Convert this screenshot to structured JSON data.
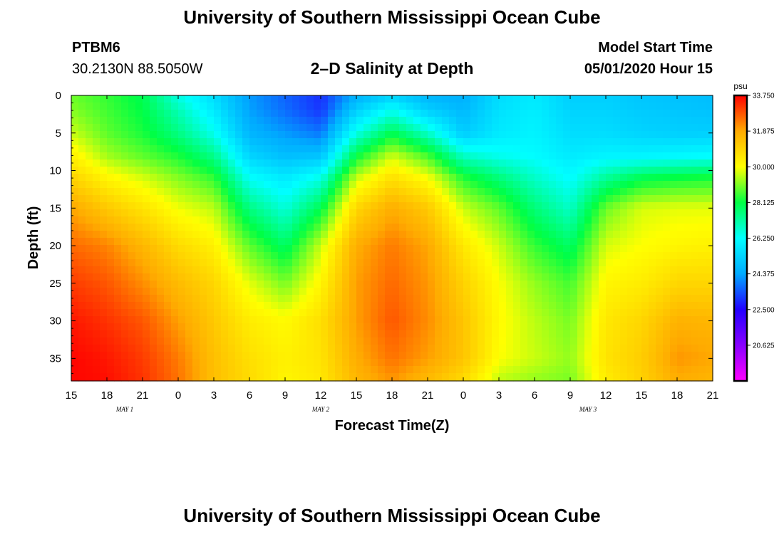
{
  "header": {
    "title": "University of Southern Mississippi Ocean Cube",
    "station": "PTBM6",
    "coords": "30.2130N 88.5050W",
    "subtitle": "2–D Salinity at Depth",
    "model_start_label": "Model Start Time",
    "model_start_value": "05/01/2020 Hour 15"
  },
  "footer": {
    "title": "University of Southern Mississippi Ocean Cube"
  },
  "chart_data": {
    "type": "heatmap",
    "xlabel": "Forecast Time(Z)",
    "ylabel": "Depth (ft)",
    "x_tick_labels": [
      "15",
      "18",
      "21",
      "0",
      "3",
      "6",
      "9",
      "12",
      "15",
      "18",
      "21",
      "0",
      "3",
      "6",
      "9",
      "12",
      "15",
      "18",
      "21"
    ],
    "date_labels": [
      {
        "label": "MAY 1",
        "at_tick": 1.5
      },
      {
        "label": "MAY 2",
        "at_tick": 7
      },
      {
        "label": "MAY 3",
        "at_tick": 14.5
      }
    ],
    "y_ticks": [
      0,
      5,
      10,
      15,
      20,
      25,
      30,
      35
    ],
    "ylim": [
      0,
      38
    ],
    "colorbar": {
      "unit": "psu",
      "min": 18.75,
      "max": 33.75,
      "tick_labels": [
        "33.750",
        "31.875",
        "30.000",
        "28.125",
        "26.250",
        "24.375",
        "22.500",
        "20.625"
      ],
      "colors": [
        "#ff00ff",
        "#8800ff",
        "#2200ff",
        "#00aaff",
        "#00ffff",
        "#00ff44",
        "#ffff00",
        "#ffaa00",
        "#ff0000"
      ]
    },
    "depth_samples": [
      0,
      2,
      5,
      8,
      11,
      15,
      20,
      25,
      30,
      35,
      38
    ],
    "columns": [
      {
        "tick": 0,
        "values": [
          28.9,
          29.1,
          29.6,
          30.3,
          31.0,
          31.9,
          32.6,
          33.1,
          33.5,
          33.7,
          33.7
        ]
      },
      {
        "tick": 1,
        "values": [
          28.5,
          28.6,
          28.8,
          29.3,
          30.2,
          31.2,
          32.3,
          32.8,
          33.2,
          33.5,
          33.6
        ]
      },
      {
        "tick": 2,
        "values": [
          28.0,
          28.1,
          28.3,
          28.8,
          29.7,
          30.6,
          31.6,
          32.2,
          32.8,
          33.1,
          33.2
        ]
      },
      {
        "tick": 3,
        "values": [
          26.5,
          27.0,
          27.5,
          28.3,
          29.1,
          29.9,
          30.8,
          31.5,
          32.0,
          32.4,
          32.5
        ]
      },
      {
        "tick": 4,
        "values": [
          25.5,
          25.8,
          26.4,
          27.4,
          28.5,
          29.5,
          30.3,
          30.9,
          31.2,
          31.4,
          31.4
        ]
      },
      {
        "tick": 5,
        "values": [
          24.2,
          24.3,
          24.6,
          25.3,
          26.3,
          27.5,
          28.8,
          29.8,
          30.4,
          30.7,
          30.8
        ]
      },
      {
        "tick": 6,
        "values": [
          23.6,
          23.7,
          24.2,
          24.8,
          25.8,
          26.6,
          27.8,
          29.0,
          30.1,
          30.3,
          30.2
        ]
      },
      {
        "tick": 7,
        "values": [
          23.0,
          23.1,
          23.8,
          24.9,
          26.5,
          28.0,
          29.6,
          30.2,
          30.7,
          30.6,
          30.5
        ]
      },
      {
        "tick": 8,
        "values": [
          24.5,
          25.2,
          26.5,
          28.1,
          29.6,
          30.9,
          31.8,
          32.0,
          32.0,
          31.8,
          31.6
        ]
      },
      {
        "tick": 9,
        "values": [
          25.2,
          26.4,
          28.0,
          29.6,
          30.7,
          31.8,
          32.4,
          32.6,
          32.8,
          32.5,
          32.1
        ]
      },
      {
        "tick": 10,
        "values": [
          24.6,
          25.2,
          26.8,
          28.6,
          30.0,
          31.2,
          31.9,
          32.1,
          32.2,
          32.0,
          31.5
        ]
      },
      {
        "tick": 11,
        "values": [
          24.5,
          24.7,
          25.1,
          26.8,
          28.4,
          29.6,
          30.5,
          31.0,
          31.3,
          31.3,
          30.8
        ]
      },
      {
        "tick": 12,
        "values": [
          25.5,
          25.6,
          25.8,
          26.4,
          27.6,
          28.8,
          29.6,
          30.0,
          30.1,
          30.0,
          29.5
        ]
      },
      {
        "tick": 13,
        "values": [
          25.8,
          25.9,
          26.0,
          26.2,
          26.8,
          27.6,
          28.5,
          29.2,
          29.5,
          29.6,
          29.2
        ]
      },
      {
        "tick": 14,
        "values": [
          25.2,
          25.3,
          25.5,
          25.8,
          26.2,
          26.8,
          27.8,
          28.6,
          29.0,
          29.2,
          29.0
        ]
      },
      {
        "tick": 15,
        "values": [
          25.2,
          25.3,
          25.5,
          26.0,
          27.3,
          28.9,
          29.7,
          30.2,
          30.5,
          30.6,
          30.4
        ]
      },
      {
        "tick": 16,
        "values": [
          25.0,
          25.1,
          25.3,
          26.0,
          28.0,
          29.7,
          30.0,
          30.4,
          30.9,
          31.1,
          31.0
        ]
      },
      {
        "tick": 17,
        "values": [
          24.9,
          25.0,
          25.2,
          26.1,
          28.2,
          29.8,
          30.2,
          30.9,
          31.7,
          32.1,
          31.8
        ]
      },
      {
        "tick": 18,
        "values": [
          24.8,
          24.9,
          25.2,
          26.2,
          28.3,
          29.8,
          30.3,
          30.9,
          31.6,
          31.9,
          31.6
        ]
      }
    ]
  }
}
